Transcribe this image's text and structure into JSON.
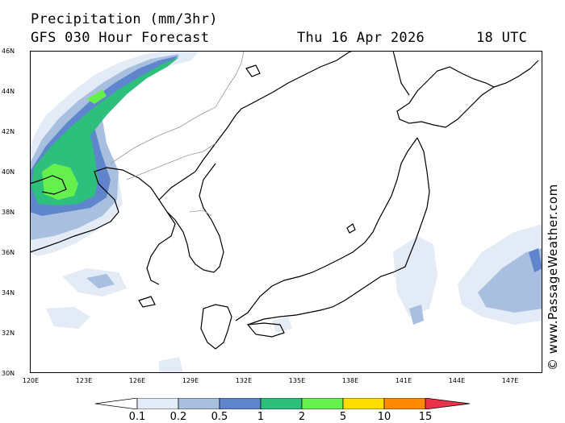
{
  "header": {
    "title": "Precipitation (mm/3hr)",
    "model": "GFS 030 Hour Forecast",
    "date": "Thu 16 Apr 2026",
    "time": "18 UTC"
  },
  "map": {
    "lat_labels": [
      "46N",
      "44N",
      "42N",
      "40N",
      "38N",
      "36N",
      "34N",
      "32N",
      "30N"
    ],
    "lon_labels": [
      "120E",
      "123E",
      "126E",
      "129E",
      "132E",
      "135E",
      "138E",
      "141E",
      "144E",
      "147E"
    ],
    "land_color": "#ffffff",
    "coast_color": "#000000",
    "border_color": "#999999"
  },
  "credit": "© www.PassageWeather.com",
  "colorbar": {
    "labels": [
      "0.1",
      "0.2",
      "0.5",
      "1",
      "2",
      "5",
      "10",
      "15"
    ],
    "colors": [
      "#ffffff",
      "#e3ebf6",
      "#a9bfe0",
      "#5f86cc",
      "#2dbf7c",
      "#66f04e",
      "#ffdd00",
      "#ff8a00",
      "#e8334a"
    ]
  }
}
